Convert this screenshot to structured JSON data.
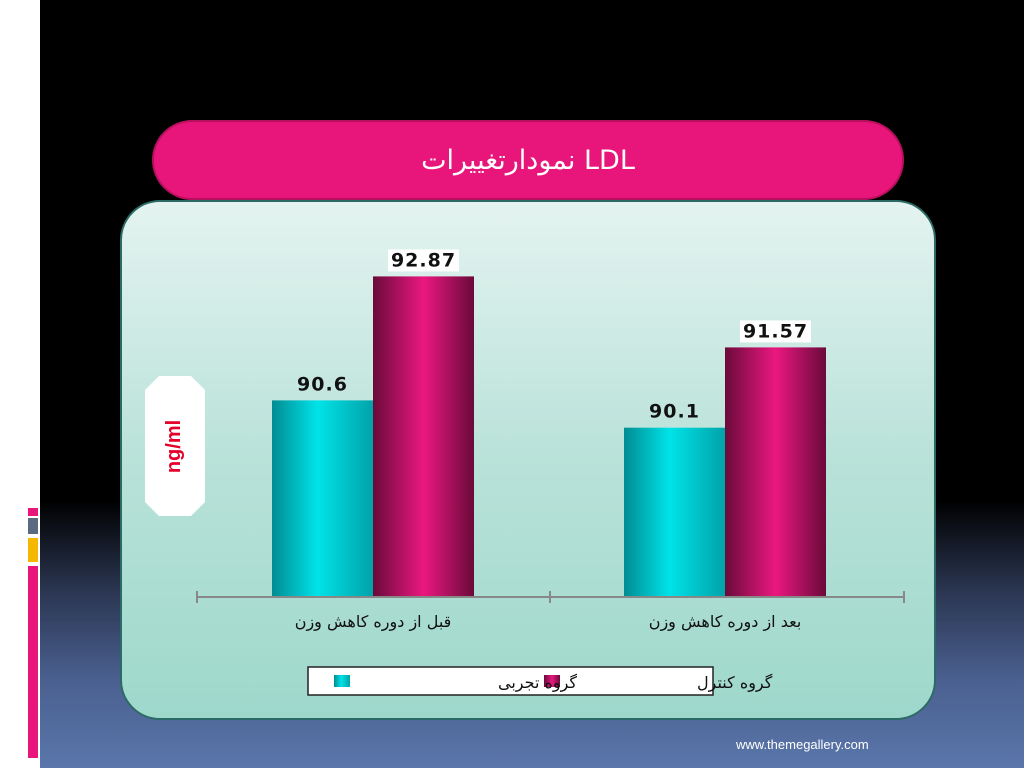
{
  "slide": {
    "title": "نمودارتغییرات LDL",
    "footer_url": "www.themegallery.com"
  },
  "colors": {
    "experimental": "#00d2d8",
    "control": "#e0157a",
    "title_bar": "#e8157a"
  },
  "chart_data": {
    "type": "bar",
    "title": "نمودارتغییرات LDL",
    "ylabel": "ng/ml",
    "xlabel": "",
    "categories": [
      "قبل از دوره کاهش وزن",
      "بعد از دوره کاهش وزن"
    ],
    "series": [
      {
        "name": "گروه تجربی",
        "values": [
          90.6,
          90.1
        ],
        "labels": [
          "90.6",
          "90.1"
        ]
      },
      {
        "name": "گروه کنترل",
        "values": [
          92.87,
          91.57
        ],
        "labels": [
          "92.87",
          "91.57"
        ]
      }
    ],
    "ylim": [
      87,
      93.5
    ],
    "grid": false,
    "legend_position": "bottom"
  }
}
